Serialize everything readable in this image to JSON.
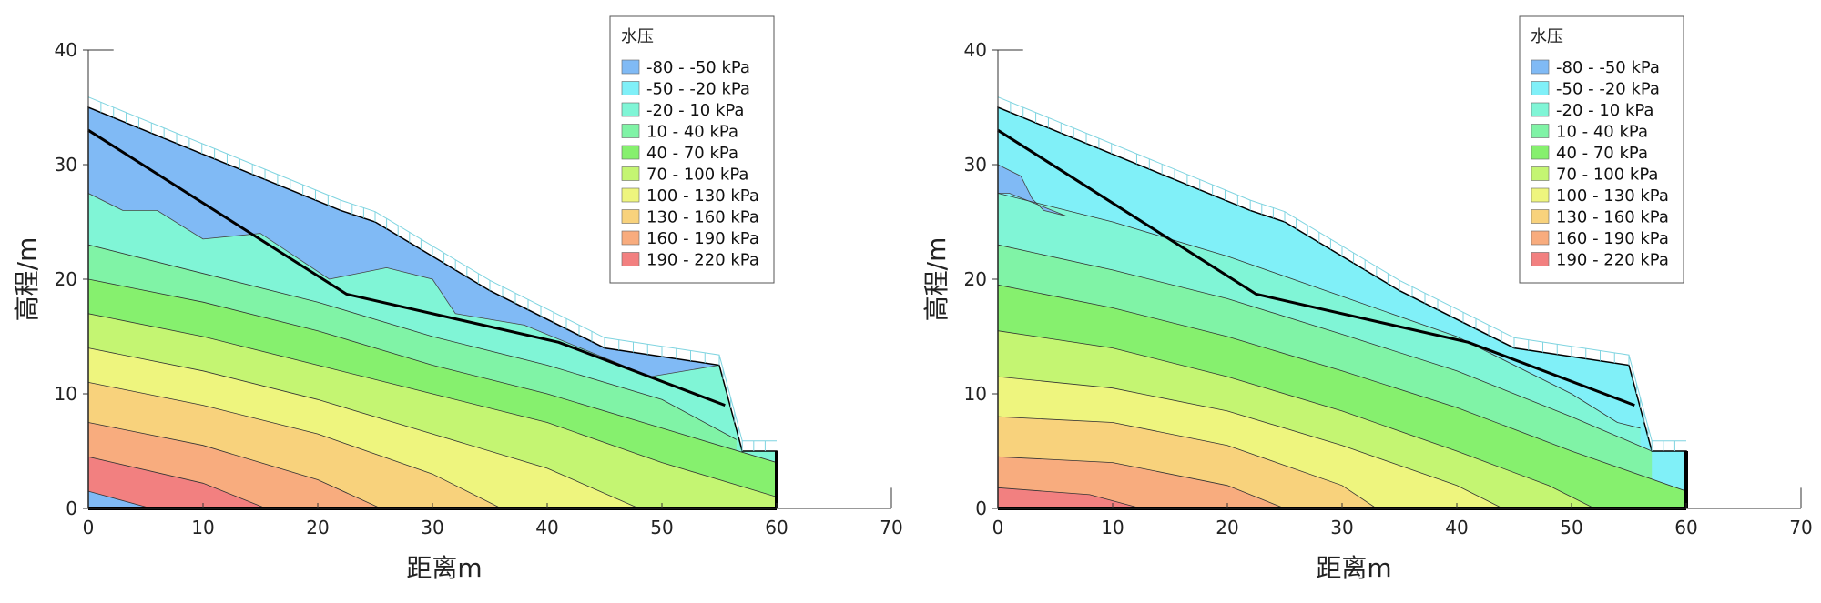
{
  "chart_data": [
    {
      "type": "contour",
      "title": "",
      "xlabel": "距离m",
      "ylabel": "高程/m",
      "xlim": [
        0,
        70
      ],
      "ylim": [
        0,
        40
      ],
      "xticks": [
        "0",
        "10",
        "20",
        "30",
        "40",
        "50",
        "60",
        "70"
      ],
      "yticks": [
        "0",
        "10",
        "20",
        "30",
        "40"
      ],
      "legend": {
        "title": "水压",
        "position": "top-right",
        "entries": [
          {
            "label": "-80 - -50 kPa",
            "color": "#80baf5"
          },
          {
            "label": "-50 - -20 kPa",
            "color": "#80f0f8"
          },
          {
            "label": "-20 - 10 kPa",
            "color": "#80f5d6"
          },
          {
            "label": "10 - 40 kPa",
            "color": "#80f3a6"
          },
          {
            "label": "40 - 70 kPa",
            "color": "#86f06e"
          },
          {
            "label": "70 - 100 kPa",
            "color": "#c4f572"
          },
          {
            "label": "100 - 130 kPa",
            "color": "#eef57e"
          },
          {
            "label": "130 - 160 kPa",
            "color": "#f8d27c"
          },
          {
            "label": "160 - 190 kPa",
            "color": "#f8ac7e"
          },
          {
            "label": "190 - 220 kPa",
            "color": "#f28080"
          }
        ]
      },
      "slope_surface": [
        [
          0,
          35
        ],
        [
          22,
          26
        ],
        [
          25,
          25
        ],
        [
          35,
          19
        ],
        [
          45,
          14
        ],
        [
          55,
          12.5
        ],
        [
          57,
          5
        ],
        [
          60,
          5
        ],
        [
          60,
          0
        ]
      ],
      "slip_surface": [
        [
          0,
          33
        ],
        [
          22.5,
          18.7
        ],
        [
          41,
          14.5
        ],
        [
          55.5,
          9
        ]
      ],
      "contour_lines": [
        {
          "level": 10,
          "points": [
            [
              0,
              23
            ],
            [
              10,
              20.5
            ],
            [
              20,
              18
            ],
            [
              30,
              15
            ],
            [
              40,
              12.5
            ],
            [
              50,
              9.5
            ],
            [
              56.5,
              6
            ]
          ]
        },
        {
          "level": 40,
          "points": [
            [
              0,
              20
            ],
            [
              10,
              18
            ],
            [
              20,
              15.5
            ],
            [
              30,
              12.5
            ],
            [
              40,
              10
            ],
            [
              50,
              7
            ],
            [
              60,
              4
            ]
          ]
        },
        {
          "level": 70,
          "points": [
            [
              0,
              17
            ],
            [
              10,
              15
            ],
            [
              20,
              12.5
            ],
            [
              30,
              10
            ],
            [
              40,
              7.5
            ],
            [
              50,
              4
            ],
            [
              60,
              1
            ]
          ]
        },
        {
          "level": 100,
          "points": [
            [
              0,
              14
            ],
            [
              10,
              12
            ],
            [
              20,
              9.5
            ],
            [
              30,
              6.5
            ],
            [
              40,
              3.5
            ],
            [
              48,
              0
            ]
          ]
        },
        {
          "level": 130,
          "points": [
            [
              0,
              11
            ],
            [
              10,
              9
            ],
            [
              20,
              6.5
            ],
            [
              30,
              3
            ],
            [
              36,
              0
            ]
          ]
        },
        {
          "level": 160,
          "points": [
            [
              0,
              7.5
            ],
            [
              10,
              5.5
            ],
            [
              20,
              2.5
            ],
            [
              25.5,
              0
            ]
          ]
        },
        {
          "level": 190,
          "points": [
            [
              0,
              4.5
            ],
            [
              10,
              2.2
            ],
            [
              15.5,
              0
            ]
          ]
        },
        {
          "level": 220,
          "points": [
            [
              0,
              1.5
            ],
            [
              5.5,
              0
            ]
          ]
        }
      ],
      "suction_zone": [
        [
          0,
          35
        ],
        [
          22,
          26
        ],
        [
          25,
          25
        ],
        [
          35,
          19
        ],
        [
          45,
          14
        ],
        [
          55,
          12.5
        ],
        [
          49,
          11.5
        ],
        [
          38,
          16
        ],
        [
          32,
          17
        ],
        [
          30,
          20
        ],
        [
          26,
          21
        ],
        [
          21,
          20
        ],
        [
          15,
          24
        ],
        [
          10,
          23.5
        ],
        [
          6,
          26
        ],
        [
          3,
          26
        ],
        [
          0,
          27.5
        ]
      ]
    },
    {
      "type": "contour",
      "title": "",
      "xlabel": "距离m",
      "ylabel": "高程/m",
      "xlim": [
        0,
        70
      ],
      "ylim": [
        0,
        40
      ],
      "xticks": [
        "0",
        "10",
        "20",
        "30",
        "40",
        "50",
        "60",
        "70"
      ],
      "yticks": [
        "0",
        "10",
        "20",
        "30",
        "40"
      ],
      "legend": {
        "title": "水压",
        "position": "top-right",
        "entries": [
          {
            "label": "-80 - -50 kPa",
            "color": "#80baf5"
          },
          {
            "label": "-50 - -20 kPa",
            "color": "#80f0f8"
          },
          {
            "label": "-20 - 10 kPa",
            "color": "#80f5d6"
          },
          {
            "label": "10 - 40 kPa",
            "color": "#80f3a6"
          },
          {
            "label": "40 - 70 kPa",
            "color": "#86f06e"
          },
          {
            "label": "70 - 100 kPa",
            "color": "#c4f572"
          },
          {
            "label": "100 - 130 kPa",
            "color": "#eef57e"
          },
          {
            "label": "130 - 160 kPa",
            "color": "#f8d27c"
          },
          {
            "label": "160 - 190 kPa",
            "color": "#f8ac7e"
          },
          {
            "label": "190 - 220 kPa",
            "color": "#f28080"
          }
        ]
      },
      "slope_surface": [
        [
          0,
          35
        ],
        [
          22,
          26
        ],
        [
          25,
          25
        ],
        [
          35,
          19
        ],
        [
          45,
          14
        ],
        [
          55,
          12.5
        ],
        [
          57,
          5
        ],
        [
          60,
          5
        ],
        [
          60,
          0
        ]
      ],
      "slip_surface": [
        [
          0,
          33
        ],
        [
          22.5,
          18.7
        ],
        [
          41,
          14.5
        ],
        [
          55.5,
          9
        ]
      ],
      "contour_lines": [
        {
          "level": -20,
          "points": [
            [
              0,
              27.5
            ],
            [
              10,
              25
            ],
            [
              20,
              22
            ],
            [
              30,
              18.5
            ],
            [
              40,
              15
            ],
            [
              50,
              10
            ],
            [
              54,
              7.5
            ],
            [
              56,
              7
            ]
          ]
        },
        {
          "level": 10,
          "points": [
            [
              0,
              23
            ],
            [
              10,
              20.8
            ],
            [
              20,
              18.3
            ],
            [
              30,
              15.2
            ],
            [
              40,
              12
            ],
            [
              50,
              8
            ],
            [
              57,
              5
            ]
          ]
        },
        {
          "level": 40,
          "points": [
            [
              0,
              19.5
            ],
            [
              10,
              17.5
            ],
            [
              20,
              15
            ],
            [
              30,
              12
            ],
            [
              40,
              8.8
            ],
            [
              50,
              5
            ],
            [
              60,
              1.5
            ]
          ]
        },
        {
          "level": 70,
          "points": [
            [
              0,
              15.5
            ],
            [
              10,
              14
            ],
            [
              20,
              11.5
            ],
            [
              30,
              8.5
            ],
            [
              40,
              5
            ],
            [
              48,
              2
            ],
            [
              52,
              0
            ]
          ]
        },
        {
          "level": 100,
          "points": [
            [
              0,
              11.5
            ],
            [
              10,
              10.5
            ],
            [
              20,
              8.5
            ],
            [
              30,
              5.5
            ],
            [
              40,
              2
            ],
            [
              44,
              0
            ]
          ]
        },
        {
          "level": 130,
          "points": [
            [
              0,
              8
            ],
            [
              10,
              7.5
            ],
            [
              20,
              5.5
            ],
            [
              30,
              2
            ],
            [
              33,
              0
            ]
          ]
        },
        {
          "level": 160,
          "points": [
            [
              0,
              4.5
            ],
            [
              10,
              4
            ],
            [
              20,
              2
            ],
            [
              25,
              0
            ]
          ]
        },
        {
          "level": 190,
          "points": [
            [
              0,
              1.8
            ],
            [
              8,
              1.2
            ],
            [
              12.5,
              0
            ]
          ]
        }
      ],
      "suction_zone": [
        [
          0,
          30
        ],
        [
          2,
          29
        ],
        [
          3,
          27
        ],
        [
          4,
          26
        ],
        [
          6,
          25.5
        ],
        [
          1,
          27.5
        ],
        [
          0,
          27.5
        ]
      ]
    }
  ]
}
